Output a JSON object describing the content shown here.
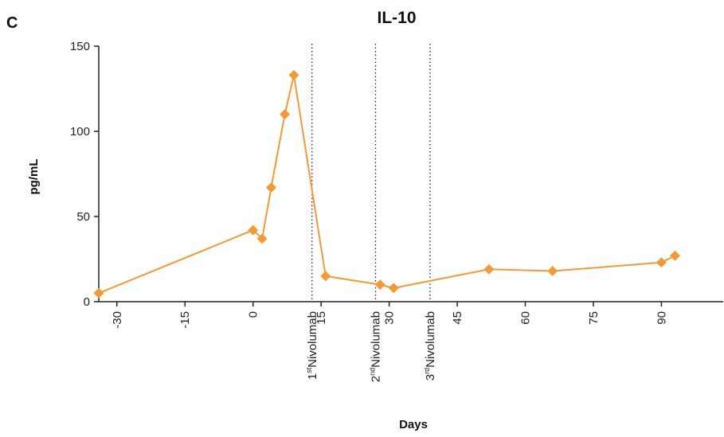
{
  "panel_label": "C",
  "chart_data": {
    "type": "line",
    "title": "IL-10",
    "xlabel": "Days",
    "ylabel": "pg/mL",
    "xlim": [
      -34,
      98
    ],
    "ylim": [
      0,
      150
    ],
    "x_ticks": [
      -30,
      -15,
      0,
      15,
      30,
      45,
      60,
      75,
      90
    ],
    "x_tick_labels": [
      "-30",
      "-15",
      "0",
      "15",
      "30",
      "45",
      "60",
      "75",
      "90"
    ],
    "y_ticks": [
      0,
      50,
      100,
      150
    ],
    "y_tick_labels": [
      "0",
      "50",
      "100",
      "150"
    ],
    "grid": false,
    "series": [
      {
        "color": "#f39a36",
        "marker": "diamond",
        "x": [
          -34,
          0,
          2,
          4,
          7,
          9,
          16,
          28,
          31,
          52,
          66,
          90,
          93
        ],
        "y": [
          5,
          42,
          37,
          67,
          110,
          133,
          15,
          10,
          8,
          19,
          18,
          23,
          27
        ]
      }
    ],
    "events": [
      {
        "x": 13,
        "ordinal": "1",
        "suffix": "st",
        "label": "Nivolumab"
      },
      {
        "x": 27,
        "ordinal": "2",
        "suffix": "nd",
        "label": "Nivolumab"
      },
      {
        "x": 39,
        "ordinal": "3",
        "suffix": "rd",
        "label": "Nivolumab"
      }
    ]
  }
}
